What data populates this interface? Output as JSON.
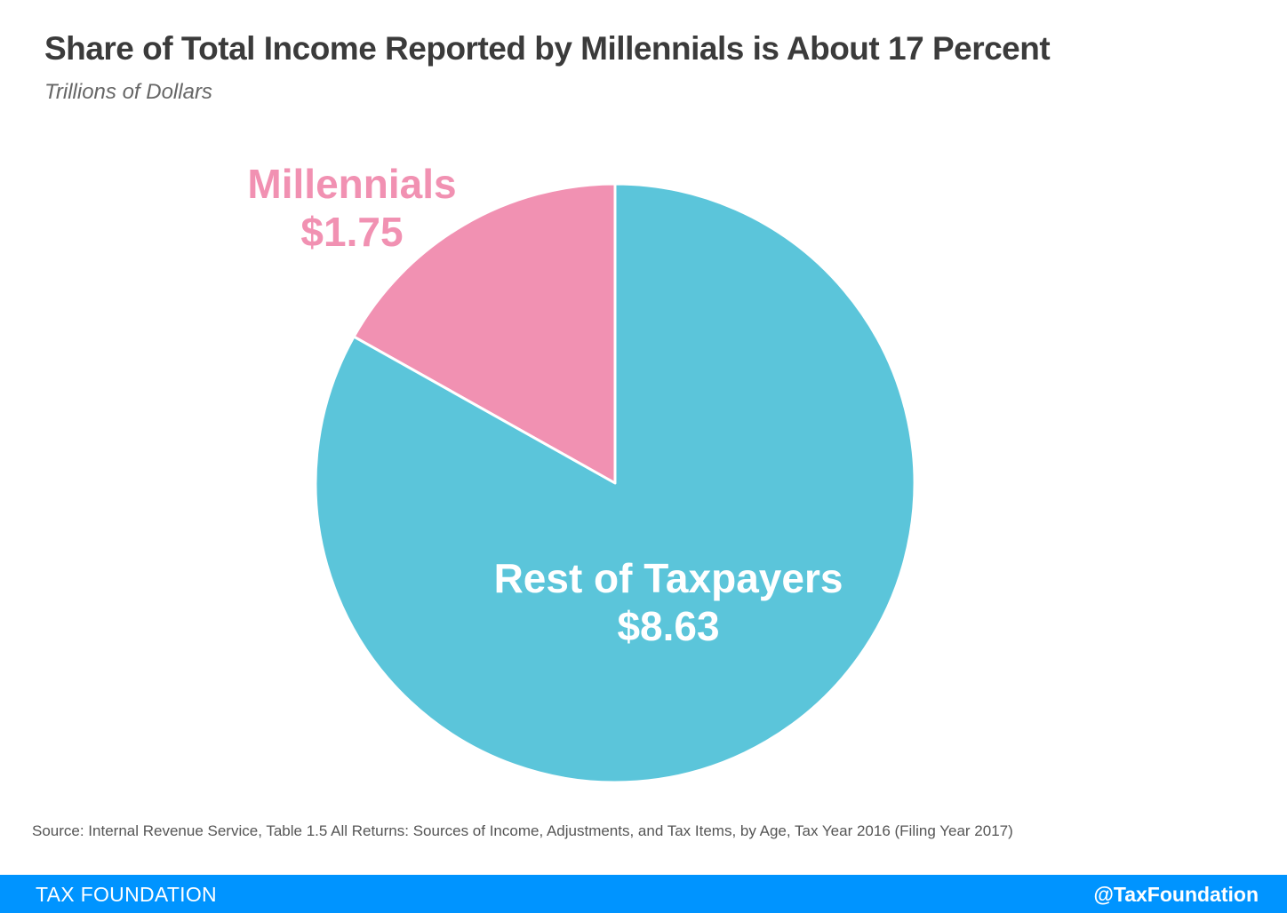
{
  "title": "Share of Total Income Reported by Millennials is About 17 Percent",
  "subtitle": "Trillions of Dollars",
  "chart_data": {
    "type": "pie",
    "title": "Share of Total Income Reported by Millennials is About 17 Percent",
    "subtitle": "Trillions of Dollars",
    "slices": [
      {
        "name": "Millennials",
        "value": 1.75,
        "value_label": "$1.75",
        "color": "#f191b2"
      },
      {
        "name": "Rest of Taxpayers",
        "value": 8.63,
        "value_label": "$8.63",
        "color": "#5bc5da"
      }
    ],
    "legend": "none",
    "start_angle": "top, counterclockwise"
  },
  "source": "Source: Internal Revenue Service, Table 1.5 All Returns: Sources of Income, Adjustments, and Tax Items, by Age, Tax Year 2016 (Filing Year 2017)",
  "footer": {
    "brand": "TAX FOUNDATION",
    "handle": "@TaxFoundation",
    "color": "#0094ff"
  }
}
